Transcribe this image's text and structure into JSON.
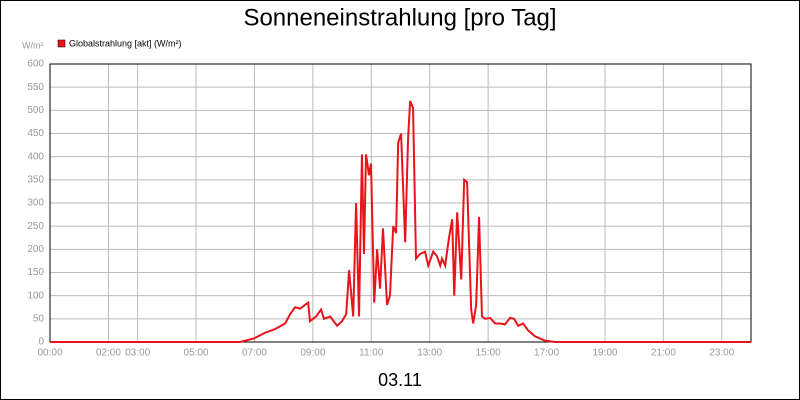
{
  "chart_data": {
    "type": "line",
    "title": "Sonneneinstrahlung [pro Tag]",
    "y_unit": "W/m²",
    "x_label": "03.11",
    "x": [
      0,
      6.51,
      6.99,
      7.36,
      7.71,
      8.05,
      8.22,
      8.39,
      8.56,
      8.73,
      8.84,
      8.9,
      9.11,
      9.28,
      9.38,
      9.59,
      9.83,
      10.0,
      10.14,
      10.24,
      10.38,
      10.48,
      10.58,
      10.68,
      10.75,
      10.82,
      10.92,
      10.99,
      11.1,
      11.2,
      11.3,
      11.4,
      11.54,
      11.64,
      11.75,
      11.85,
      11.92,
      12.02,
      12.16,
      12.26,
      12.33,
      12.43,
      12.53,
      12.67,
      12.84,
      12.95,
      13.12,
      13.25,
      13.36,
      13.42,
      13.53,
      13.66,
      13.77,
      13.84,
      13.94,
      14.08,
      14.18,
      14.28,
      14.42,
      14.49,
      14.59,
      14.69,
      14.79,
      14.9,
      15.07,
      15.24,
      15.41,
      15.58,
      15.75,
      15.89,
      16.03,
      16.2,
      16.37,
      16.61,
      16.95,
      17.29,
      24
    ],
    "series": [
      {
        "name": "Globalstrahlung [akt] (W/m²)",
        "color": "#e8141c",
        "values": [
          0,
          0,
          8,
          20,
          28,
          40,
          60,
          75,
          72,
          80,
          85,
          45,
          55,
          70,
          50,
          55,
          35,
          45,
          60,
          155,
          55,
          300,
          55,
          405,
          190,
          405,
          360,
          385,
          85,
          200,
          115,
          245,
          80,
          100,
          250,
          235,
          430,
          450,
          215,
          440,
          520,
          505,
          180,
          190,
          195,
          165,
          195,
          185,
          165,
          180,
          165,
          225,
          265,
          100,
          280,
          135,
          350,
          345,
          70,
          40,
          80,
          270,
          55,
          50,
          52,
          40,
          40,
          38,
          52,
          50,
          35,
          40,
          25,
          12,
          3,
          0,
          0
        ]
      }
    ],
    "xlim": [
      0,
      24
    ],
    "xticks": [
      {
        "value": 0,
        "label": "00:00"
      },
      {
        "value": 2,
        "label": "02:00"
      },
      {
        "value": 3,
        "label": "03:00"
      },
      {
        "value": 5,
        "label": "05:00"
      },
      {
        "value": 7,
        "label": "07:00"
      },
      {
        "value": 9,
        "label": "09:00"
      },
      {
        "value": 11,
        "label": "11:00"
      },
      {
        "value": 13,
        "label": "13:00"
      },
      {
        "value": 15,
        "label": "15:00"
      },
      {
        "value": 17,
        "label": "17:00"
      },
      {
        "value": 19,
        "label": "19:00"
      },
      {
        "value": 21,
        "label": "21:00"
      },
      {
        "value": 23,
        "label": "23:00"
      }
    ],
    "ylim": [
      0,
      600
    ],
    "yticks": [
      0,
      50,
      100,
      150,
      200,
      250,
      300,
      350,
      400,
      450,
      500,
      550,
      600
    ],
    "grid": true
  }
}
